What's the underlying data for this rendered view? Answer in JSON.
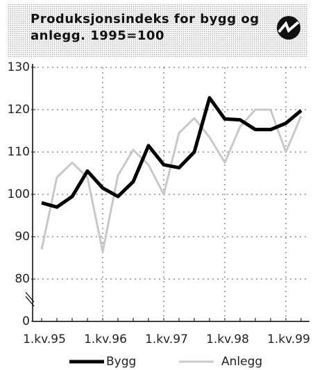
{
  "chart_data": {
    "type": "line",
    "title": "Produksjonsindeks for bygg og anlegg. 1995=100",
    "categories": [
      "1.kv.95",
      null,
      null,
      null,
      "1.kv.96",
      null,
      null,
      null,
      "1.kv.97",
      null,
      null,
      null,
      "1.kv.98",
      null,
      null,
      null,
      "1.kv.99",
      null
    ],
    "series": [
      {
        "name": "Bygg",
        "color": "#000000",
        "values": [
          98,
          97,
          99.5,
          105.5,
          101.5,
          99.5,
          103,
          111.5,
          107,
          106.3,
          110,
          122.8,
          117.8,
          117.6,
          115.3,
          115.3,
          116.8,
          119.8
        ]
      },
      {
        "name": "Anlegg",
        "color": "#c8c8c8",
        "values": [
          87,
          104,
          107.5,
          104,
          86.5,
          104.5,
          110.5,
          107,
          100,
          114.5,
          118,
          113.5,
          107.5,
          116,
          120,
          120,
          110,
          118.5
        ]
      }
    ],
    "ylim": [
      70,
      130
    ],
    "yticks": [
      {
        "value": 70,
        "label": "0"
      },
      80,
      90,
      100,
      110,
      120,
      130
    ],
    "grid": true
  }
}
